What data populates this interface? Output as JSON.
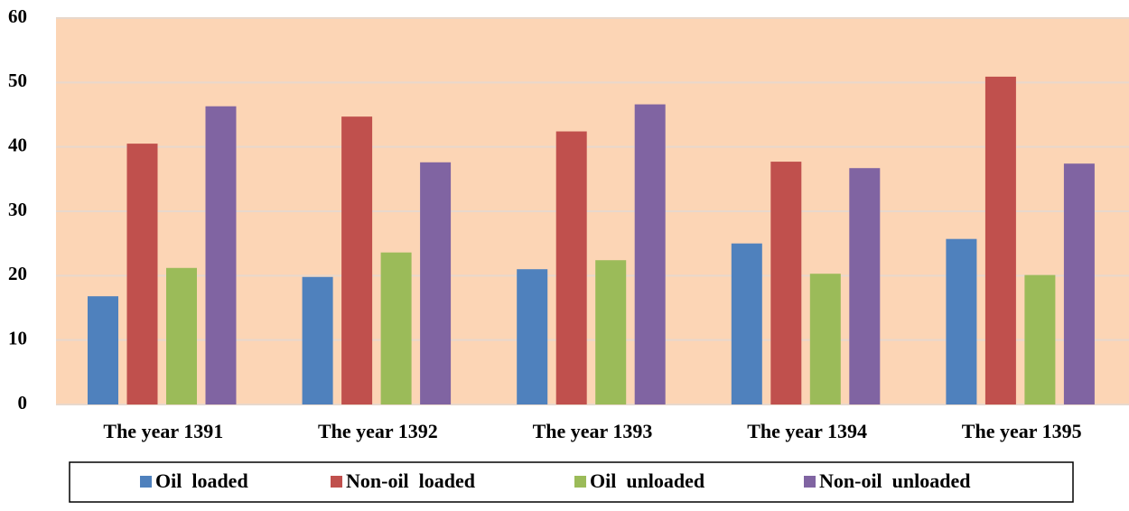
{
  "chart_data": {
    "type": "bar",
    "categories": [
      "The year 1391",
      "The year 1392",
      "The year 1393",
      "The year 1394",
      "The year 1395"
    ],
    "series": [
      {
        "name": "Oil  loaded",
        "color": "#4f81bd",
        "values": [
          16.8,
          19.8,
          21.0,
          25.0,
          25.7
        ]
      },
      {
        "name": "Non-oil  loaded",
        "color": "#c0504d",
        "values": [
          40.5,
          44.7,
          42.4,
          37.7,
          50.9
        ]
      },
      {
        "name": "Oil  unloaded",
        "color": "#9bbb59",
        "values": [
          21.2,
          23.6,
          22.4,
          20.3,
          20.1
        ]
      },
      {
        "name": "Non-oil  unloaded",
        "color": "#8064a2",
        "values": [
          46.3,
          37.6,
          46.6,
          36.7,
          37.4
        ]
      }
    ],
    "ylim": [
      0,
      60
    ],
    "yticks": [
      0,
      10,
      20,
      30,
      40,
      50,
      60
    ],
    "grid": true,
    "plot_background": "#fcd5b5",
    "legend": "bottom"
  }
}
